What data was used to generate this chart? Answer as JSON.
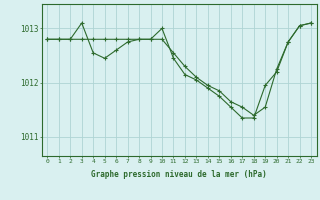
{
  "line1_x": [
    0,
    1,
    2,
    3,
    4,
    5,
    6,
    7,
    8,
    9,
    10,
    11,
    12,
    13,
    14,
    15,
    16,
    17,
    18,
    19,
    20,
    21,
    22,
    23
  ],
  "line1_y": [
    1012.8,
    1012.8,
    1012.8,
    1012.8,
    1012.8,
    1012.8,
    1012.8,
    1012.8,
    1012.8,
    1012.8,
    1012.8,
    1012.55,
    1012.3,
    1012.1,
    1011.95,
    1011.85,
    1011.65,
    1011.55,
    1011.4,
    1011.55,
    1012.25,
    1012.75,
    1013.05,
    1013.1
  ],
  "line2_x": [
    0,
    1,
    2,
    3,
    4,
    5,
    6,
    7,
    8,
    9,
    10,
    11,
    12,
    13,
    14,
    15,
    16,
    17,
    18,
    19,
    20,
    21,
    22,
    23
  ],
  "line2_y": [
    1012.8,
    1012.8,
    1012.8,
    1013.1,
    1012.55,
    1012.45,
    1012.6,
    1012.75,
    1012.8,
    1012.8,
    1013.0,
    1012.45,
    1012.15,
    1012.05,
    1011.9,
    1011.75,
    1011.55,
    1011.35,
    1011.35,
    1011.95,
    1012.2,
    1012.75,
    1013.05,
    1013.1
  ],
  "line_color": "#2d6a2d",
  "bg_color": "#d9f0f0",
  "grid_color": "#aed4d4",
  "xlabel": "Graphe pression niveau de la mer (hPa)",
  "yticks": [
    1011,
    1012,
    1013
  ],
  "xticks": [
    0,
    1,
    2,
    3,
    4,
    5,
    6,
    7,
    8,
    9,
    10,
    11,
    12,
    13,
    14,
    15,
    16,
    17,
    18,
    19,
    20,
    21,
    22,
    23
  ],
  "ylim": [
    1010.65,
    1013.45
  ],
  "xlim": [
    -0.5,
    23.5
  ]
}
